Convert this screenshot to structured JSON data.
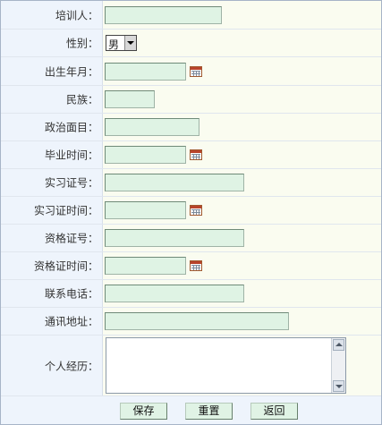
{
  "form": {
    "trainee_label": "培训人：",
    "trainee_value": "",
    "gender_label": "性别：",
    "gender_value": "男",
    "birth_label": "出生年月：",
    "birth_value": "",
    "ethnicity_label": "民族：",
    "ethnicity_value": "",
    "political_label": "政治面目：",
    "political_value": "",
    "graduation_label": "毕业时间：",
    "graduation_value": "",
    "internship_no_label": "实习证号：",
    "internship_no_value": "",
    "internship_time_label": "实习证时间：",
    "internship_time_value": "",
    "qualification_no_label": "资格证号：",
    "qualification_no_value": "",
    "qualification_time_label": "资格证时间：",
    "qualification_time_value": "",
    "phone_label": "联系电话：",
    "phone_value": "",
    "address_label": "通讯地址：",
    "address_value": "",
    "resume_label": "个人经历：",
    "resume_value": ""
  },
  "buttons": {
    "save": "保存",
    "reset": "重置",
    "back": "返回"
  },
  "icons": {
    "date_picker": "calendar-icon",
    "dropdown": "chevron-down-icon",
    "scroll_up": "scroll-up-icon",
    "scroll_down": "scroll-down-icon"
  },
  "colors": {
    "label_background": "#eef4fc",
    "field_background": "#dff3e4",
    "page_background": "#fafcf0",
    "button_background": "#e0f3e5"
  }
}
